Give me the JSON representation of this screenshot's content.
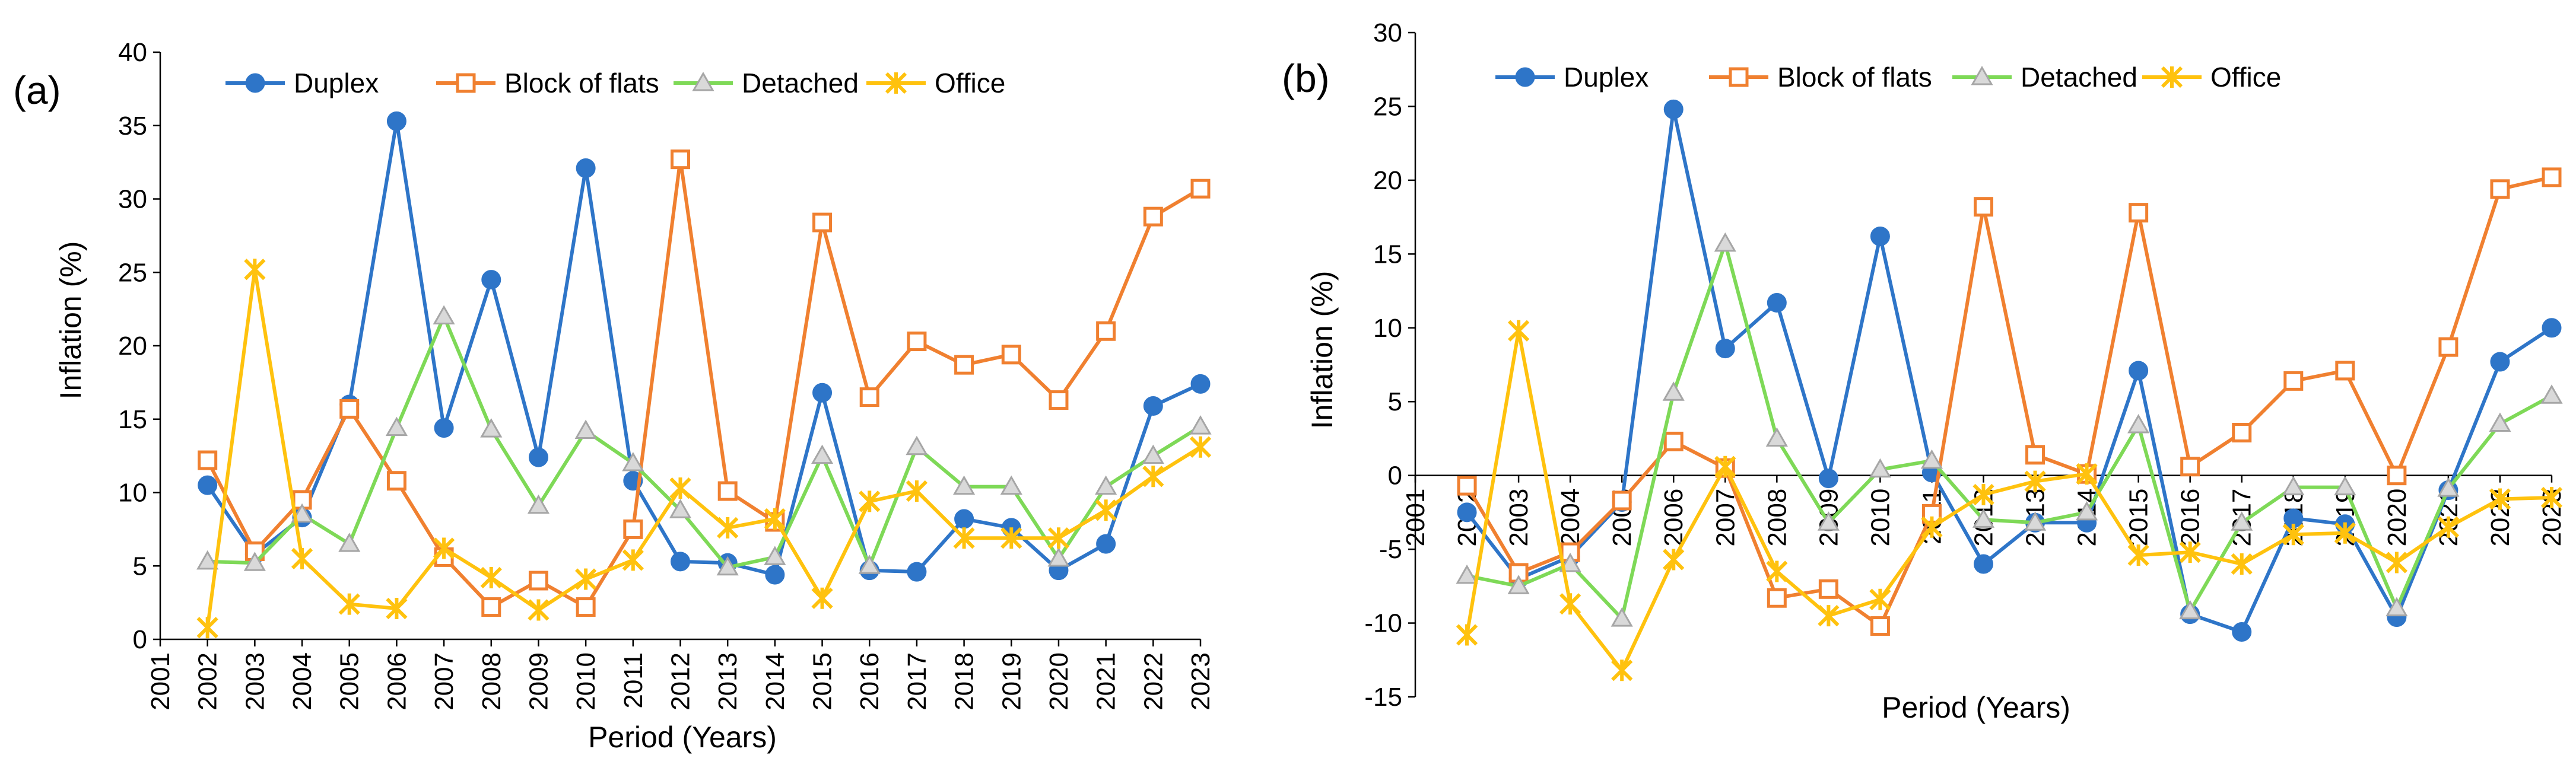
{
  "chart_data": [
    {
      "panel_label": "(a)",
      "type": "line",
      "title": "",
      "xlabel": "Period (Years)",
      "ylabel": "Inflation (%)",
      "categories": [
        "2001",
        "2002",
        "2003",
        "2004",
        "2005",
        "2006",
        "2007",
        "2008",
        "2009",
        "2010",
        "2011",
        "2012",
        "2013",
        "2014",
        "2015",
        "2016",
        "2017",
        "2018",
        "2019",
        "2020",
        "2021",
        "2022",
        "2023"
      ],
      "ylim": [
        0,
        40
      ],
      "yticks": [
        "0",
        "5",
        "10",
        "15",
        "20",
        "25",
        "30",
        "35",
        "40"
      ],
      "grid": false,
      "legend_position": "top",
      "series": [
        {
          "name": "Duplex",
          "marker": "circle",
          "color": "#2E75C8",
          "values": [
            null,
            10.5,
            5.8,
            8.3,
            16.0,
            35.3,
            14.4,
            24.5,
            12.4,
            32.1,
            10.8,
            5.3,
            5.2,
            4.4,
            16.8,
            4.7,
            4.6,
            8.2,
            7.6,
            4.7,
            6.5,
            15.9,
            17.4
          ]
        },
        {
          "name": "Block of flats",
          "marker": "square",
          "color": "#F08030",
          "values": [
            null,
            12.2,
            6.0,
            9.5,
            15.7,
            10.8,
            5.6,
            2.2,
            4.0,
            2.2,
            7.5,
            32.7,
            10.1,
            8.0,
            28.4,
            16.5,
            20.3,
            18.7,
            19.4,
            16.3,
            21.0,
            28.8,
            30.7
          ]
        },
        {
          "name": "Detached",
          "marker": "triangle",
          "color": "#7ED957",
          "values": [
            null,
            5.3,
            5.2,
            8.5,
            6.5,
            14.4,
            22.0,
            14.3,
            9.1,
            14.2,
            12.0,
            8.8,
            4.9,
            5.6,
            12.5,
            5.0,
            13.1,
            10.4,
            10.4,
            5.5,
            10.4,
            12.5,
            14.5
          ]
        },
        {
          "name": "Office",
          "marker": "star",
          "color": "#FFC20E",
          "values": [
            null,
            0.8,
            25.2,
            5.5,
            2.4,
            2.1,
            6.2,
            4.2,
            2.0,
            4.1,
            5.4,
            10.3,
            7.6,
            8.2,
            2.8,
            9.4,
            10.1,
            6.9,
            6.9,
            6.9,
            8.8,
            11.1,
            13.1
          ]
        }
      ]
    },
    {
      "panel_label": "(b)",
      "type": "line",
      "title": "",
      "xlabel": "Period (Years)",
      "ylabel": "Inflation (%)",
      "categories": [
        "2001",
        "2002",
        "2003",
        "2004",
        "2005",
        "2006",
        "2007",
        "2008",
        "2009",
        "2010",
        "2011",
        "2012",
        "2013",
        "2014",
        "2015",
        "2016",
        "2017",
        "2018",
        "2019",
        "2020",
        "2021",
        "2022",
        "2023"
      ],
      "ylim": [
        -15,
        30
      ],
      "yticks": [
        "-15",
        "-10",
        "-5",
        "0",
        "5",
        "10",
        "15",
        "20",
        "25",
        "30"
      ],
      "grid": false,
      "legend_position": "top",
      "series": [
        {
          "name": "Duplex",
          "marker": "circle",
          "color": "#2E75C8",
          "values": [
            null,
            -2.5,
            -7.0,
            -5.5,
            -1.8,
            24.8,
            8.6,
            11.7,
            -0.2,
            16.2,
            0.2,
            -6.0,
            -3.2,
            -3.2,
            7.1,
            -9.4,
            -10.6,
            -2.9,
            -3.3,
            -9.6,
            -1.0,
            7.7,
            10.0
          ]
        },
        {
          "name": "Block of flats",
          "marker": "square",
          "color": "#F08030",
          "values": [
            null,
            -0.7,
            -6.6,
            -5.2,
            -1.7,
            2.3,
            0.5,
            -8.3,
            -7.7,
            -10.2,
            -2.6,
            18.2,
            1.4,
            0.1,
            17.8,
            0.6,
            2.9,
            6.4,
            7.1,
            0.0,
            8.7,
            19.4,
            20.2
          ]
        },
        {
          "name": "Detached",
          "marker": "triangle",
          "color": "#7ED957",
          "values": [
            null,
            -6.8,
            -7.5,
            -6.0,
            -9.7,
            5.6,
            15.7,
            2.5,
            -3.2,
            0.4,
            1.0,
            -3.0,
            -3.2,
            -2.5,
            3.4,
            -9.2,
            -3.2,
            -0.8,
            -0.8,
            -9.0,
            -0.9,
            3.5,
            5.4
          ]
        },
        {
          "name": "Office",
          "marker": "star",
          "color": "#FFC20E",
          "values": [
            null,
            -10.8,
            9.8,
            -8.7,
            -13.2,
            -5.7,
            0.6,
            -6.5,
            -9.5,
            -8.4,
            -3.5,
            -1.3,
            -0.4,
            0.1,
            -5.4,
            -5.2,
            -6.0,
            -4.0,
            -3.9,
            -5.9,
            -3.5,
            -1.6,
            -1.5
          ]
        }
      ]
    }
  ]
}
